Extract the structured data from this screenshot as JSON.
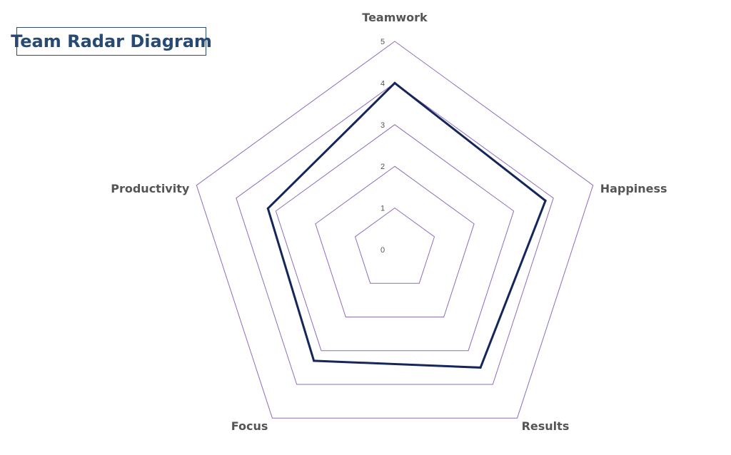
{
  "chart_data": {
    "type": "radar",
    "title": "Team Radar Diagram",
    "axes": [
      "Teamwork",
      "Happiness",
      "Results",
      "Focus",
      "Productivity"
    ],
    "values": [
      4,
      3.8,
      3.5,
      3.3,
      3.2
    ],
    "rmin": 0,
    "rmax": 5,
    "ticks": [
      "0",
      "1",
      "2",
      "3",
      "4",
      "5"
    ],
    "grid": true,
    "gridline_color": "#8e6cbc",
    "series_color": "#15265a"
  }
}
